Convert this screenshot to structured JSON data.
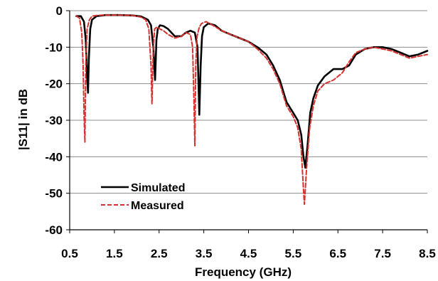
{
  "chart_data": {
    "type": "line",
    "xlabel": "Frequency (GHz)",
    "ylabel": "|S11| in dB",
    "xlim": [
      0.5,
      8.5
    ],
    "ylim": [
      -60,
      0
    ],
    "xticks": [
      "0.5",
      "1.5",
      "2.5",
      "3.5",
      "4.5",
      "5.5",
      "6.5",
      "7.5",
      "8.5"
    ],
    "yticks": [
      "0",
      "-10",
      "-20",
      "-30",
      "-40",
      "-50",
      "-60"
    ],
    "grid": "horizontal",
    "legend_position": "lower-left",
    "series": [
      {
        "name": "Simulated",
        "color": "#000000",
        "style": "solid",
        "x": [
          0.65,
          0.75,
          0.82,
          0.86,
          0.89,
          0.91,
          0.93,
          0.96,
          1.0,
          1.1,
          1.3,
          1.6,
          1.9,
          2.1,
          2.25,
          2.32,
          2.37,
          2.41,
          2.44,
          2.47,
          2.52,
          2.6,
          2.7,
          2.85,
          3.0,
          3.1,
          3.2,
          3.3,
          3.36,
          3.4,
          3.43,
          3.46,
          3.5,
          3.6,
          3.75,
          3.9,
          4.1,
          4.3,
          4.5,
          4.7,
          4.9,
          5.05,
          5.2,
          5.35,
          5.5,
          5.6,
          5.68,
          5.73,
          5.77,
          5.82,
          5.88,
          5.95,
          6.05,
          6.2,
          6.4,
          6.6,
          6.75,
          6.9,
          7.1,
          7.3,
          7.5,
          7.7,
          7.9,
          8.1,
          8.3,
          8.5
        ],
        "y": [
          -1.5,
          -1.5,
          -3,
          -8,
          -18,
          -22.5,
          -13,
          -5,
          -2.5,
          -1.5,
          -1.2,
          -1.2,
          -1.3,
          -1.6,
          -2.5,
          -4,
          -10,
          -19,
          -8,
          -5,
          -4,
          -4.2,
          -5,
          -7,
          -7,
          -6,
          -5.5,
          -6,
          -10,
          -28.5,
          -15,
          -7,
          -4.5,
          -3.5,
          -4,
          -5.5,
          -6.5,
          -7.5,
          -8.5,
          -10,
          -12,
          -15,
          -19,
          -25,
          -28,
          -30,
          -34,
          -40,
          -43,
          -37,
          -28,
          -24,
          -20.5,
          -18,
          -16,
          -16,
          -15,
          -12,
          -10.5,
          -10,
          -10,
          -10.5,
          -11.5,
          -12.5,
          -12,
          -11
        ]
      },
      {
        "name": "Measured",
        "color": "#d7312e",
        "style": "dashed",
        "x": [
          0.65,
          0.72,
          0.77,
          0.8,
          0.82,
          0.84,
          0.86,
          0.89,
          0.94,
          1.0,
          1.1,
          1.3,
          1.6,
          1.9,
          2.1,
          2.2,
          2.27,
          2.32,
          2.34,
          2.37,
          2.4,
          2.45,
          2.52,
          2.6,
          2.7,
          2.85,
          3.0,
          3.1,
          3.2,
          3.25,
          3.28,
          3.3,
          3.32,
          3.35,
          3.4,
          3.45,
          3.55,
          3.7,
          3.9,
          4.1,
          4.3,
          4.5,
          4.7,
          4.9,
          5.05,
          5.2,
          5.35,
          5.5,
          5.6,
          5.68,
          5.72,
          5.75,
          5.8,
          5.87,
          5.95,
          6.05,
          6.2,
          6.4,
          6.6,
          6.75,
          6.9,
          7.1,
          7.3,
          7.5,
          7.7,
          7.9,
          8.1,
          8.3,
          8.5
        ],
        "y": [
          -1.5,
          -2,
          -6,
          -15,
          -28,
          -36,
          -15,
          -5,
          -2.5,
          -1.5,
          -1.3,
          -1.2,
          -1.2,
          -1.3,
          -1.8,
          -2.5,
          -5,
          -15,
          -25.5,
          -10,
          -5,
          -4.5,
          -5,
          -5.5,
          -6.5,
          -7.5,
          -7,
          -6,
          -6.5,
          -10,
          -25,
          -37,
          -15,
          -7,
          -4.5,
          -3.5,
          -3,
          -4,
          -5.5,
          -6.5,
          -7.5,
          -8.5,
          -10.5,
          -13,
          -16,
          -20,
          -26,
          -29,
          -32,
          -38,
          -47,
          -53,
          -43,
          -32,
          -26,
          -22,
          -20,
          -19,
          -17,
          -14,
          -11.5,
          -10.5,
          -10,
          -10.5,
          -11,
          -12,
          -13,
          -12.5,
          -12
        ]
      }
    ]
  }
}
